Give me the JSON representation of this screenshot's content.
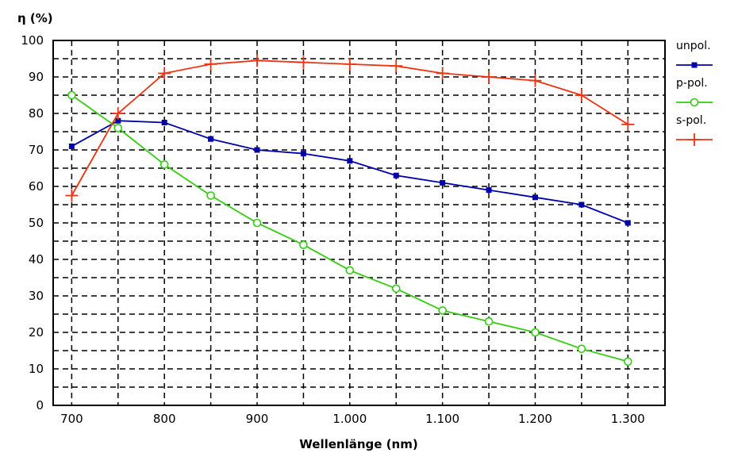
{
  "chart_data": {
    "type": "line",
    "ylabel": "η (%)",
    "xlabel": "Wellenlänge (nm)",
    "x": [
      700,
      750,
      800,
      850,
      900,
      950,
      1000,
      1050,
      1100,
      1150,
      1200,
      1250,
      1300
    ],
    "x_tick_labels": [
      "700",
      "800",
      "900",
      "1.000",
      "1.100",
      "1.200",
      "1.300"
    ],
    "x_tick_values": [
      700,
      800,
      900,
      1000,
      1100,
      1200,
      1300
    ],
    "y_tick_values": [
      0,
      10,
      20,
      30,
      40,
      50,
      60,
      70,
      80,
      90,
      100
    ],
    "xlim": [
      680,
      1340
    ],
    "ylim": [
      0,
      100
    ],
    "grid": true,
    "legend_position": "right",
    "series": [
      {
        "name": "unpol.",
        "color": "#0000aa",
        "marker": "square",
        "values": [
          71,
          78,
          77.5,
          73,
          70,
          69,
          67,
          63,
          61,
          59,
          57,
          55,
          50
        ]
      },
      {
        "name": "p-pol.",
        "color": "#33cc11",
        "marker": "circle",
        "values": [
          85,
          76,
          66,
          57.5,
          50,
          44,
          37,
          32,
          26,
          23,
          20,
          15.5,
          12
        ]
      },
      {
        "name": "s-pol.",
        "color": "#ee3311",
        "marker": "plus",
        "values": [
          57.5,
          80,
          91,
          93.5,
          94.5,
          94,
          93.5,
          93,
          91,
          90,
          89,
          85,
          77
        ]
      }
    ]
  }
}
